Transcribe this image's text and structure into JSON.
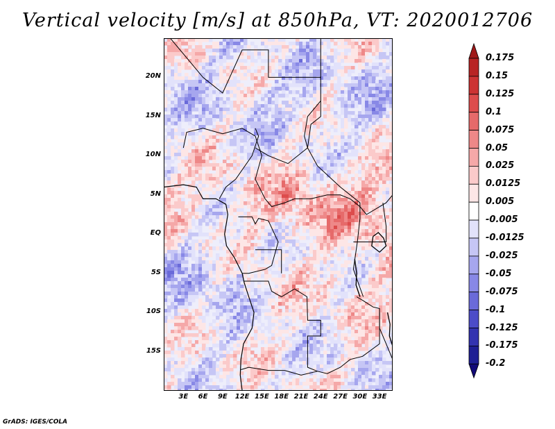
{
  "title": "Vertical velocity [m/s] at 850hPa, VT: 2020012706",
  "footer": "GrADS: IGES/COLA",
  "map": {
    "lon_range": [
      0,
      35
    ],
    "lat_range": [
      -20,
      25
    ],
    "lat_labels": [
      "20N",
      "15N",
      "10N",
      "5N",
      "EQ",
      "5S",
      "10S",
      "15S"
    ],
    "lon_labels": [
      "3E",
      "6E",
      "9E",
      "12E",
      "15E",
      "18E",
      "21E",
      "24E",
      "27E",
      "30E",
      "33E"
    ]
  },
  "colorbar": {
    "labels": [
      "0.175",
      "0.15",
      "0.125",
      "0.1",
      "0.075",
      "0.05",
      "0.025",
      "0.0125",
      "0.005",
      "-0.005",
      "-0.0125",
      "-0.025",
      "-0.05",
      "-0.075",
      "-0.1",
      "-0.125",
      "-0.175",
      "-0.2"
    ],
    "colors": [
      "#a01a1a",
      "#b82424",
      "#cc3333",
      "#dd4c4c",
      "#e66a6a",
      "#ee8888",
      "#f5a8a8",
      "#fbcaca",
      "#fde6e6",
      "#ffffff",
      "#e2e2fb",
      "#c6c6f5",
      "#a6a6ee",
      "#8888e6",
      "#6a6ad9",
      "#4c4cc8",
      "#3333b0",
      "#1f1f94",
      "#120a78"
    ]
  }
}
